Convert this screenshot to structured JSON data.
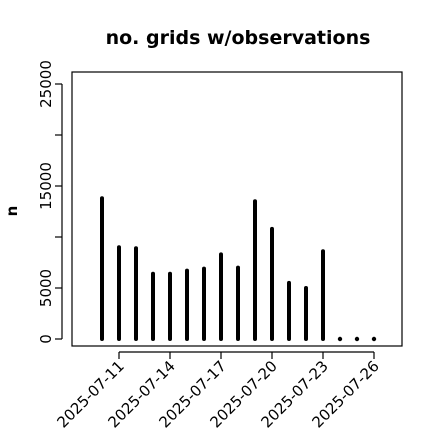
{
  "chart_data": {
    "type": "bar",
    "title": "no. grids w/observations",
    "ylabel": "n",
    "xlabel": "",
    "ylim": [
      0,
      25000
    ],
    "y_ticks": [
      0,
      5000,
      15000,
      25000
    ],
    "x_ticks": [
      "2025-07-11",
      "2025-07-14",
      "2025-07-17",
      "2025-07-20",
      "2025-07-23",
      "2025-07-26"
    ],
    "highlight_tick": "2025-07-17",
    "highlight_color": "#228b22",
    "bar_color": "#000000",
    "categories": [
      "2025-07-10",
      "2025-07-11",
      "2025-07-12",
      "2025-07-13",
      "2025-07-14",
      "2025-07-15",
      "2025-07-16",
      "2025-07-17",
      "2025-07-18",
      "2025-07-19",
      "2025-07-20",
      "2025-07-21",
      "2025-07-22",
      "2025-07-23",
      "2025-07-24",
      "2025-07-25",
      "2025-07-26"
    ],
    "values": [
      13800,
      9000,
      8900,
      6400,
      6400,
      6700,
      6900,
      8300,
      7000,
      13500,
      10800,
      5500,
      5000,
      8600,
      0,
      0,
      0
    ]
  }
}
